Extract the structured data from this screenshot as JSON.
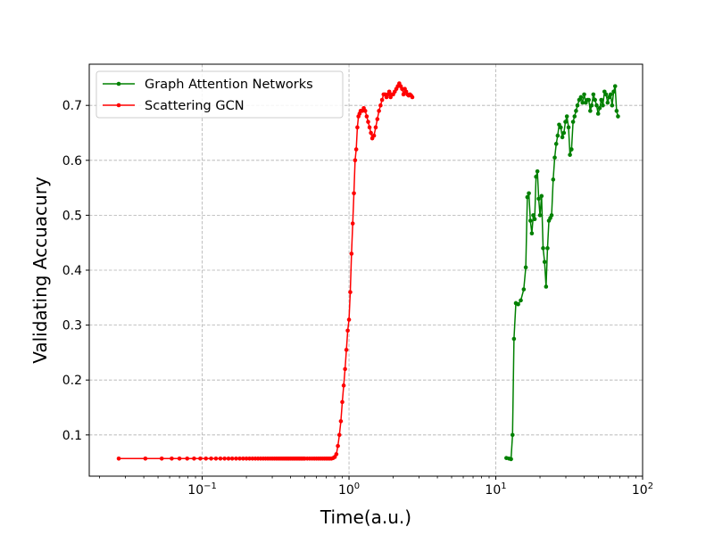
{
  "chart_data": {
    "type": "line",
    "xlabel": "Time(a.u.)",
    "ylabel": "Validating Accuacury",
    "xscale": "log",
    "xlim": [
      0.017,
      100
    ],
    "ylim": [
      0.025,
      0.775
    ],
    "grid": true,
    "legend_placement": "top-left",
    "x_ticks": [
      {
        "value": 0.1,
        "base": "10",
        "exp": "−1"
      },
      {
        "value": 1,
        "base": "10",
        "exp": "0"
      },
      {
        "value": 10,
        "base": "10",
        "exp": "1"
      },
      {
        "value": 100,
        "base": "10",
        "exp": "2"
      }
    ],
    "y_ticks": [
      {
        "value": 0.1,
        "label": "0.1"
      },
      {
        "value": 0.2,
        "label": "0.2"
      },
      {
        "value": 0.3,
        "label": "0.3"
      },
      {
        "value": 0.4,
        "label": "0.4"
      },
      {
        "value": 0.5,
        "label": "0.5"
      },
      {
        "value": 0.6,
        "label": "0.6"
      },
      {
        "value": 0.7,
        "label": "0.7"
      }
    ],
    "series": [
      {
        "name": "Graph Attention Networks",
        "color": "#008000",
        "x": [
          11.8,
          12.3,
          12.7,
          13.0,
          13.3,
          13.7,
          14.2,
          14.8,
          15.5,
          16.0,
          16.4,
          16.8,
          17.2,
          17.6,
          18.0,
          18.4,
          18.8,
          19.2,
          19.6,
          20.0,
          20.5,
          21.0,
          21.5,
          22.0,
          22.5,
          23.0,
          23.5,
          24.0,
          24.6,
          25.2,
          25.8,
          26.4,
          27.0,
          27.7,
          28.4,
          29.1,
          29.8,
          30.5,
          31.3,
          32.0,
          32.8,
          33.6,
          34.4,
          35.2,
          36.0,
          37.0,
          38.0,
          39.0,
          40.0,
          41.0,
          42.0,
          43.0,
          44.0,
          45.0,
          46.2,
          47.4,
          48.6,
          49.8,
          51.0,
          52.3,
          53.6,
          55.0,
          56.4,
          57.8,
          59.2,
          60.6,
          62.0,
          63.5,
          65.0,
          66.5,
          68.0
        ],
        "y": [
          0.058,
          0.057,
          0.056,
          0.1,
          0.275,
          0.34,
          0.338,
          0.345,
          0.365,
          0.405,
          0.533,
          0.54,
          0.49,
          0.467,
          0.5,
          0.493,
          0.57,
          0.58,
          0.53,
          0.5,
          0.535,
          0.44,
          0.415,
          0.37,
          0.44,
          0.49,
          0.495,
          0.5,
          0.565,
          0.605,
          0.63,
          0.645,
          0.665,
          0.66,
          0.642,
          0.65,
          0.67,
          0.68,
          0.66,
          0.61,
          0.62,
          0.67,
          0.68,
          0.69,
          0.7,
          0.71,
          0.715,
          0.705,
          0.72,
          0.705,
          0.71,
          0.71,
          0.69,
          0.7,
          0.72,
          0.71,
          0.7,
          0.685,
          0.695,
          0.71,
          0.7,
          0.725,
          0.72,
          0.705,
          0.715,
          0.72,
          0.7,
          0.725,
          0.735,
          0.69,
          0.68
        ]
      },
      {
        "name": "Scattering GCN",
        "color": "#ff0000",
        "x": [
          0.027,
          0.041,
          0.053,
          0.062,
          0.07,
          0.079,
          0.088,
          0.097,
          0.106,
          0.115,
          0.124,
          0.133,
          0.142,
          0.151,
          0.16,
          0.17,
          0.18,
          0.19,
          0.2,
          0.21,
          0.22,
          0.23,
          0.24,
          0.25,
          0.26,
          0.27,
          0.28,
          0.29,
          0.3,
          0.31,
          0.32,
          0.33,
          0.34,
          0.35,
          0.36,
          0.37,
          0.38,
          0.39,
          0.4,
          0.41,
          0.42,
          0.43,
          0.44,
          0.45,
          0.46,
          0.47,
          0.48,
          0.49,
          0.5,
          0.52,
          0.54,
          0.56,
          0.58,
          0.6,
          0.62,
          0.64,
          0.66,
          0.68,
          0.7,
          0.72,
          0.74,
          0.76,
          0.78,
          0.8,
          0.82,
          0.84,
          0.86,
          0.88,
          0.9,
          0.92,
          0.94,
          0.96,
          0.98,
          1.0,
          1.02,
          1.04,
          1.06,
          1.08,
          1.1,
          1.12,
          1.14,
          1.16,
          1.18,
          1.2,
          1.23,
          1.26,
          1.29,
          1.32,
          1.35,
          1.38,
          1.41,
          1.44,
          1.48,
          1.52,
          1.56,
          1.6,
          1.64,
          1.68,
          1.72,
          1.76,
          1.8,
          1.84,
          1.88,
          1.92,
          1.96,
          2.0,
          2.05,
          2.1,
          2.15,
          2.2,
          2.25,
          2.3,
          2.35,
          2.4,
          2.45,
          2.5,
          2.55,
          2.6,
          2.65,
          2.7
        ],
        "y": [
          0.057,
          0.057,
          0.057,
          0.057,
          0.057,
          0.057,
          0.057,
          0.057,
          0.057,
          0.057,
          0.057,
          0.057,
          0.057,
          0.057,
          0.057,
          0.057,
          0.057,
          0.057,
          0.057,
          0.057,
          0.057,
          0.057,
          0.057,
          0.057,
          0.057,
          0.057,
          0.057,
          0.057,
          0.057,
          0.057,
          0.057,
          0.057,
          0.057,
          0.057,
          0.057,
          0.057,
          0.057,
          0.057,
          0.057,
          0.057,
          0.057,
          0.057,
          0.057,
          0.057,
          0.057,
          0.057,
          0.057,
          0.057,
          0.057,
          0.057,
          0.057,
          0.057,
          0.057,
          0.057,
          0.057,
          0.057,
          0.057,
          0.057,
          0.057,
          0.057,
          0.057,
          0.057,
          0.058,
          0.06,
          0.065,
          0.08,
          0.1,
          0.125,
          0.16,
          0.19,
          0.22,
          0.255,
          0.29,
          0.31,
          0.36,
          0.43,
          0.485,
          0.54,
          0.6,
          0.62,
          0.66,
          0.68,
          0.685,
          0.69,
          0.69,
          0.695,
          0.69,
          0.68,
          0.67,
          0.66,
          0.65,
          0.64,
          0.645,
          0.66,
          0.675,
          0.69,
          0.7,
          0.71,
          0.72,
          0.72,
          0.715,
          0.72,
          0.725,
          0.715,
          0.72,
          0.72,
          0.725,
          0.73,
          0.735,
          0.74,
          0.735,
          0.73,
          0.72,
          0.73,
          0.725,
          0.72,
          0.718,
          0.72,
          0.718,
          0.715
        ]
      }
    ]
  }
}
